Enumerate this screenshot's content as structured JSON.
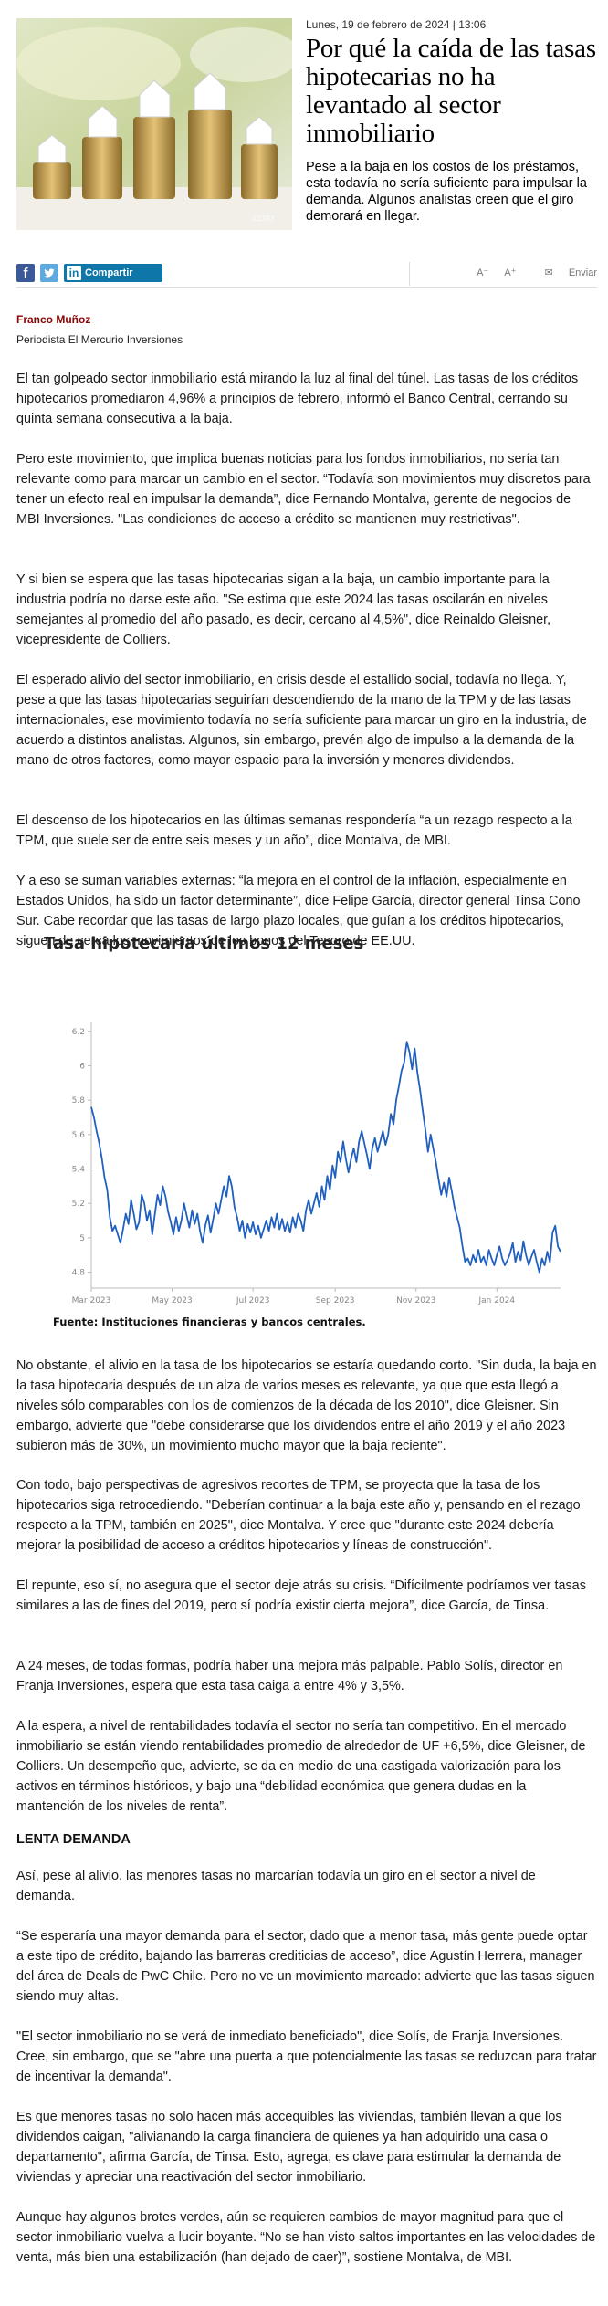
{
  "article": {
    "dateline": "Lunes, 19 de febrero de 2024 | 13:06",
    "headline": "Por qué la caída de las tasas hipotecarias no ha levantado al sector inmobiliario",
    "lede": "Pese a la baja en los costos de los préstamos, esta todavía no sería suficiente para impulsar la demanda. Algunos analistas creen que el giro demorará en llegar.",
    "hero_image": {
      "description_icon": "houses-on-coins-photo"
    },
    "share": {
      "facebook_icon": "f",
      "linkedin_label": "Compartir",
      "linkedin_icon": "in",
      "font_smaller": "A⁻",
      "font_larger": "A⁺",
      "send_label": "Enviar"
    },
    "author": {
      "name": "Franco Muñoz",
      "role": "Periodista El Mercurio Inversiones"
    },
    "paragraphs_top": [
      "El tan golpeado sector inmobiliario está mirando la luz al final del túnel. Las tasas de los créditos hipotecarios promediaron 4,96% a principios de febrero, informó el Banco Central, cerrando su quinta semana consecutiva a la baja.",
      "Pero este movimiento, que implica buenas noticias para los fondos inmobiliarios, no sería tan relevante como para marcar un cambio en el sector. “Todavía son movimientos muy discretos para tener un efecto real en impulsar la demanda”, dice Fernando Montalva, gerente de negocios de MBI Inversiones. \"Las condiciones de acceso a crédito se mantienen muy restrictivas\".",
      "Y si bien se espera que las tasas hipotecarias sigan a la baja, un cambio importante para la industria podría no darse este año. \"Se estima que este 2024 las tasas oscilarán en niveles semejantes al promedio del año pasado, es decir, cercano al 4,5%\", dice Reinaldo Gleisner, vicepresidente de Colliers.",
      "El esperado alivio del sector inmobiliario, en crisis desde el estallido social, todavía no llega. Y, pese a que las tasas hipotecarias seguirían descendiendo de la mano de la TPM y de las tasas internacionales, ese movimiento todavía no sería suficiente para marcar un giro en la industria, de acuerdo a distintos analistas. Algunos, sin embargo, prevén algo de impulso a la demanda de la mano de otros factores, como mayor espacio para la inversión y menores dividendos.",
      "El descenso de los hipotecarios en las últimas semanas respondería “a un rezago respecto a la TPM, que suele ser de entre seis meses y un año”, dice Montalva, de MBI.",
      "Y a eso se suman variables externas: “la mejora en el control de la inflación, especialmente en Estados Unidos, ha sido un factor determinante”, dice Felipe García, director general Tinsa Cono Sur. Cabe recordar que las tasas de largo plazo locales, que guían a los créditos hipotecarios, siguen de cerca los movimientos de los bonos del Tesoro de EE.UU."
    ],
    "paragraphs_bottom": [
      "No obstante, el alivio en la tasa de los hipotecarios se estaría quedando corto. \"Sin duda, la baja en la tasa hipotecaria después de un alza de varios meses es relevante, ya que que esta llegó a niveles sólo comparables con los de comienzos de la década de los 2010\", dice Gleisner. Sin embargo, advierte que \"debe considerarse que los dividendos entre el año 2019 y el año 2023 subieron más de 30%, un movimiento mucho mayor que la baja reciente\".",
      "Con todo, bajo perspectivas de agresivos recortes de TPM, se proyecta que la tasa de los hipotecarios siga retrocediendo. \"Deberían continuar a la baja este año y, pensando en el rezago respecto a la TPM, también en 2025\", dice Montalva. Y cree que \"durante este 2024 debería mejorar la posibilidad de acceso a créditos hipotecarios y líneas de construcción\".",
      "El repunte, eso sí, no asegura que el sector deje atrás su crisis. “Difícilmente podríamos ver tasas similares a las de fines del 2019, pero sí podría existir cierta mejora”, dice García, de Tinsa.",
      "A 24 meses, de todas formas, podría haber una mejora más palpable. Pablo Solís, director en Franja Inversiones, espera que esta tasa caiga a entre 4% y 3,5%.",
      "A la espera, a nivel de rentabilidades todavía el sector no sería tan competitivo. En el mercado inmobiliario se están viendo rentabilidades promedio de alrededor de UF +6,5%, dice Gleisner, de Colliers. Un desempeño que, advierte, se da en medio de una castigada valorización para los activos en términos históricos, y bajo una “debilidad económica que genera dudas en la mantención de los niveles de renta”."
    ],
    "subhead": "LENTA DEMANDA",
    "paragraphs_final": [
      "Así, pese al alivio, las menores tasas no marcarían todavía un giro en el sector a nivel de demanda.",
      "“Se esperaría una mayor demanda para el sector, dado que a menor tasa, más gente puede optar a este tipo de crédito, bajando las barreras crediticias de acceso”, dice Agustín Herrera, manager del área de Deals de PwC Chile. Pero no ve un movimiento marcado: advierte que las tasas siguen siendo muy altas.",
      "\"El sector inmobiliario no se verá de inmediato beneficiado\", dice Solís, de Franja Inversiones. Cree, sin embargo, que se \"abre una puerta a que potencialmente las tasas se reduzcan para tratar de incentivar la demanda\".",
      "Es que menores tasas no solo hacen más accequibles las viviendas, también llevan a que los dividendos caigan, \"alivianando la carga financiera de quienes ya han adquirido una casa o departamento\", afirma García, de Tinsa. Esto, agrega, es clave para estimular la demanda de viviendas y apreciar una reactivación del sector inmobiliario.",
      "Aunque hay algunos brotes verdes, aún se requieren cambios de mayor magnitud para que el sector inmobiliario vuelva a lucir boyante. “No se han visto saltos importantes en las velocidades de venta, más bien una estabilización (han dejado de caer)”, sostiene Montalva, de MBI."
    ]
  },
  "chart_data": {
    "type": "line",
    "title": "Tasa hipotecaria últimos 12 meses",
    "source": "Fuente: Instituciones financieras y bancos centrales.",
    "xlabel": "",
    "ylabel": "",
    "y_ticks": [
      "4.8",
      "5",
      "5.2",
      "5.4",
      "5.6",
      "5.8",
      "6",
      "6.2"
    ],
    "ylim": [
      4.75,
      6.22
    ],
    "x_ticks": [
      "Mar 2023",
      "May 2023",
      "Jul 2023",
      "Sep 2023",
      "Nov 2023",
      "Jan 2024"
    ],
    "x_tick_days": [
      0,
      61,
      122,
      184,
      245,
      306
    ],
    "x_range_days": [
      0,
      354
    ],
    "grid": false,
    "line_color": "#1f5fbf",
    "series": [
      {
        "values_by_day": [
          [
            0,
            5.76
          ],
          [
            2,
            5.7
          ],
          [
            4,
            5.62
          ],
          [
            6,
            5.55
          ],
          [
            8,
            5.46
          ],
          [
            10,
            5.35
          ],
          [
            12,
            5.28
          ],
          [
            14,
            5.12
          ],
          [
            16,
            5.04
          ],
          [
            18,
            5.07
          ],
          [
            20,
            5.02
          ],
          [
            22,
            4.97
          ],
          [
            24,
            5.05
          ],
          [
            26,
            5.14
          ],
          [
            28,
            5.08
          ],
          [
            30,
            5.22
          ],
          [
            32,
            5.14
          ],
          [
            34,
            5.05
          ],
          [
            36,
            5.09
          ],
          [
            38,
            5.25
          ],
          [
            40,
            5.2
          ],
          [
            42,
            5.1
          ],
          [
            44,
            5.16
          ],
          [
            46,
            5.02
          ],
          [
            48,
            5.14
          ],
          [
            50,
            5.25
          ],
          [
            52,
            5.19
          ],
          [
            54,
            5.3
          ],
          [
            56,
            5.24
          ],
          [
            58,
            5.15
          ],
          [
            60,
            5.09
          ],
          [
            62,
            5.02
          ],
          [
            64,
            5.12
          ],
          [
            66,
            5.04
          ],
          [
            68,
            5.1
          ],
          [
            70,
            5.2
          ],
          [
            72,
            5.13
          ],
          [
            74,
            5.06
          ],
          [
            76,
            5.16
          ],
          [
            78,
            5.08
          ],
          [
            80,
            5.14
          ],
          [
            82,
            5.04
          ],
          [
            84,
            4.97
          ],
          [
            86,
            5.07
          ],
          [
            88,
            5.13
          ],
          [
            90,
            5.03
          ],
          [
            92,
            5.11
          ],
          [
            94,
            5.2
          ],
          [
            96,
            5.14
          ],
          [
            98,
            5.22
          ],
          [
            100,
            5.3
          ],
          [
            102,
            5.24
          ],
          [
            104,
            5.36
          ],
          [
            106,
            5.3
          ],
          [
            108,
            5.18
          ],
          [
            110,
            5.12
          ],
          [
            112,
            5.04
          ],
          [
            114,
            5.1
          ],
          [
            116,
            5.0
          ],
          [
            118,
            5.08
          ],
          [
            120,
            5.03
          ],
          [
            122,
            5.09
          ],
          [
            124,
            5.02
          ],
          [
            126,
            5.07
          ],
          [
            128,
            5.0
          ],
          [
            130,
            5.05
          ],
          [
            132,
            5.1
          ],
          [
            134,
            5.04
          ],
          [
            136,
            5.12
          ],
          [
            138,
            5.06
          ],
          [
            140,
            5.14
          ],
          [
            142,
            5.05
          ],
          [
            144,
            5.11
          ],
          [
            146,
            5.04
          ],
          [
            148,
            5.09
          ],
          [
            150,
            5.03
          ],
          [
            152,
            5.12
          ],
          [
            154,
            5.06
          ],
          [
            156,
            5.14
          ],
          [
            158,
            5.1
          ],
          [
            160,
            5.04
          ],
          [
            162,
            5.16
          ],
          [
            164,
            5.22
          ],
          [
            166,
            5.14
          ],
          [
            168,
            5.2
          ],
          [
            170,
            5.26
          ],
          [
            172,
            5.18
          ],
          [
            174,
            5.3
          ],
          [
            176,
            5.22
          ],
          [
            178,
            5.36
          ],
          [
            180,
            5.28
          ],
          [
            182,
            5.42
          ],
          [
            184,
            5.35
          ],
          [
            186,
            5.5
          ],
          [
            188,
            5.44
          ],
          [
            190,
            5.56
          ],
          [
            192,
            5.46
          ],
          [
            194,
            5.38
          ],
          [
            196,
            5.46
          ],
          [
            198,
            5.52
          ],
          [
            200,
            5.44
          ],
          [
            202,
            5.56
          ],
          [
            204,
            5.62
          ],
          [
            206,
            5.55
          ],
          [
            208,
            5.48
          ],
          [
            210,
            5.4
          ],
          [
            212,
            5.52
          ],
          [
            214,
            5.58
          ],
          [
            216,
            5.5
          ],
          [
            218,
            5.56
          ],
          [
            220,
            5.62
          ],
          [
            222,
            5.54
          ],
          [
            224,
            5.6
          ],
          [
            226,
            5.72
          ],
          [
            228,
            5.66
          ],
          [
            230,
            5.8
          ],
          [
            232,
            5.88
          ],
          [
            234,
            5.97
          ],
          [
            236,
            6.02
          ],
          [
            238,
            6.14
          ],
          [
            240,
            6.08
          ],
          [
            242,
            5.98
          ],
          [
            244,
            6.1
          ],
          [
            246,
            5.96
          ],
          [
            248,
            5.86
          ],
          [
            250,
            5.74
          ],
          [
            252,
            5.63
          ],
          [
            254,
            5.5
          ],
          [
            256,
            5.6
          ],
          [
            258,
            5.52
          ],
          [
            260,
            5.44
          ],
          [
            262,
            5.34
          ],
          [
            264,
            5.25
          ],
          [
            266,
            5.32
          ],
          [
            268,
            5.24
          ],
          [
            270,
            5.35
          ],
          [
            272,
            5.27
          ],
          [
            274,
            5.18
          ],
          [
            276,
            5.12
          ],
          [
            278,
            5.06
          ],
          [
            280,
            4.95
          ],
          [
            282,
            4.86
          ],
          [
            284,
            4.88
          ],
          [
            286,
            4.84
          ],
          [
            288,
            4.9
          ],
          [
            290,
            4.86
          ],
          [
            292,
            4.93
          ],
          [
            294,
            4.86
          ],
          [
            296,
            4.89
          ],
          [
            298,
            4.84
          ],
          [
            300,
            4.93
          ],
          [
            302,
            4.88
          ],
          [
            304,
            4.84
          ],
          [
            306,
            4.9
          ],
          [
            308,
            4.95
          ],
          [
            310,
            4.88
          ],
          [
            312,
            4.84
          ],
          [
            314,
            4.87
          ],
          [
            316,
            4.91
          ],
          [
            318,
            4.97
          ],
          [
            320,
            4.86
          ],
          [
            322,
            4.92
          ],
          [
            324,
            4.87
          ],
          [
            326,
            4.98
          ],
          [
            328,
            4.9
          ],
          [
            330,
            4.84
          ],
          [
            332,
            4.89
          ],
          [
            334,
            4.93
          ],
          [
            336,
            4.86
          ],
          [
            338,
            4.8
          ],
          [
            340,
            4.88
          ],
          [
            342,
            4.84
          ],
          [
            344,
            4.92
          ],
          [
            346,
            4.86
          ],
          [
            348,
            5.03
          ],
          [
            350,
            5.07
          ],
          [
            352,
            4.95
          ],
          [
            354,
            4.92
          ]
        ]
      }
    ]
  }
}
